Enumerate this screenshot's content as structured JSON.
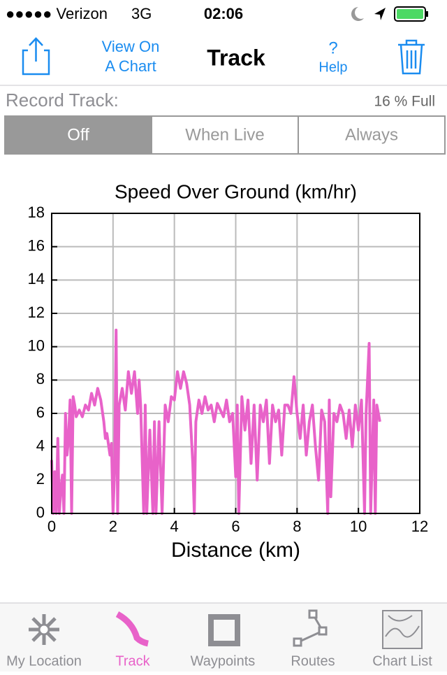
{
  "status_bar": {
    "carrier": "●●●●● Verizon",
    "network": "3G",
    "time": "02:06"
  },
  "nav_bar": {
    "view_on_chart": [
      "View On",
      "A Chart"
    ],
    "title": "Track",
    "help_icon": "?",
    "help": "Help"
  },
  "record": {
    "label": "Record Track:",
    "fullness": "16 % Full",
    "options": [
      "Off",
      "When Live",
      "Always"
    ],
    "selected": 0
  },
  "chart_data": {
    "type": "line",
    "title": "Speed Over Ground (km/hr)",
    "x_label": "Distance (km)",
    "x": [
      0,
      0.05,
      0.1,
      0.15,
      0.2,
      0.25,
      0.3,
      0.35,
      0.4,
      0.45,
      0.5,
      0.55,
      0.6,
      0.65,
      0.7,
      0.75,
      0.8,
      0.9,
      1.0,
      1.1,
      1.2,
      1.3,
      1.4,
      1.5,
      1.6,
      1.7,
      1.75,
      1.8,
      1.9,
      1.95,
      2.0,
      2.05,
      2.1,
      2.15,
      2.2,
      2.3,
      2.4,
      2.5,
      2.6,
      2.7,
      2.8,
      2.85,
      2.9,
      3.0,
      3.05,
      3.1,
      3.2,
      3.3,
      3.35,
      3.4,
      3.5,
      3.6,
      3.7,
      3.8,
      3.9,
      4.0,
      4.1,
      4.2,
      4.3,
      4.4,
      4.5,
      4.6,
      4.65,
      4.7,
      4.8,
      4.9,
      5.0,
      5.1,
      5.2,
      5.3,
      5.4,
      5.5,
      5.6,
      5.7,
      5.8,
      5.9,
      6.0,
      6.05,
      6.1,
      6.2,
      6.3,
      6.4,
      6.5,
      6.6,
      6.7,
      6.8,
      6.9,
      7.0,
      7.1,
      7.2,
      7.3,
      7.4,
      7.5,
      7.6,
      7.7,
      7.8,
      7.9,
      8.0,
      8.1,
      8.2,
      8.3,
      8.4,
      8.5,
      8.6,
      8.7,
      8.8,
      8.9,
      9.0,
      9.05,
      9.1,
      9.2,
      9.3,
      9.4,
      9.5,
      9.6,
      9.7,
      9.8,
      9.9,
      10.0,
      10.1,
      10.2,
      10.25,
      10.35,
      10.4,
      10.5,
      10.55,
      10.6,
      10.7
    ],
    "values": [
      3.2,
      0,
      2.5,
      0,
      4.5,
      0,
      1.5,
      2.3,
      0,
      6,
      3.5,
      4.5,
      6.8,
      0,
      7,
      6.5,
      5.8,
      6.2,
      5.8,
      6.5,
      6.2,
      7.2,
      6.5,
      7.5,
      6.8,
      5.5,
      4.5,
      4.8,
      3.5,
      4.2,
      0,
      2.5,
      11,
      0,
      6.5,
      7.5,
      6.2,
      8.5,
      7.2,
      8.5,
      6,
      8,
      6.5,
      0,
      6.5,
      0,
      5,
      0,
      5.5,
      0,
      5.5,
      0,
      6.5,
      5.5,
      7,
      6.8,
      8.5,
      7.5,
      8.5,
      7.8,
      6.5,
      3,
      0,
      5.5,
      6.8,
      6,
      7,
      6.2,
      6.5,
      5.5,
      6.6,
      6.2,
      5.8,
      6.8,
      5.5,
      6,
      2.2,
      6.5,
      0,
      7,
      5,
      6.8,
      3,
      6.5,
      2,
      6.5,
      5.5,
      6.8,
      3,
      6.5,
      5.5,
      6.2,
      3.5,
      6.5,
      6.5,
      6,
      8.2,
      6,
      4.5,
      6.5,
      3.5,
      5.5,
      6.5,
      4,
      2,
      6.2,
      5.5,
      0,
      6.8,
      1,
      6,
      5.5,
      6.5,
      6,
      4.5,
      6.2,
      4,
      6.5,
      5,
      6.8,
      0,
      6,
      10.2,
      0,
      6.8,
      0,
      6.5,
      5.5
    ],
    "color": "#e862c9",
    "xlim": [
      0,
      12
    ],
    "xticks": [
      0,
      2,
      4,
      6,
      8,
      10,
      12
    ],
    "ylim": [
      0,
      18
    ],
    "yticks": [
      0,
      2,
      4,
      6,
      8,
      10,
      12,
      14,
      16,
      18
    ],
    "grid": true
  },
  "tab_bar": {
    "tabs": [
      "My Location",
      "Track",
      "Waypoints",
      "Routes",
      "Chart List"
    ],
    "selected": 1
  }
}
